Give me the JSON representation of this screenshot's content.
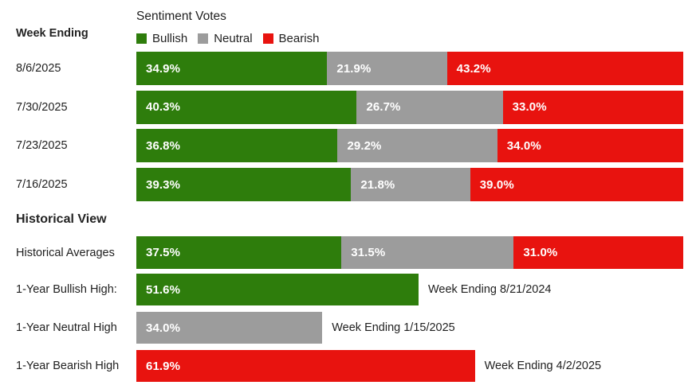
{
  "title": "Sentiment Votes",
  "left_header": "Week Ending",
  "section_header": "Historical View",
  "colors": {
    "bullish": "#2e7d0c",
    "neutral": "#9c9c9c",
    "bearish": "#e8130f",
    "text": "#1f1f1f",
    "bar_label": "#ffffff",
    "background": "#ffffff"
  },
  "chart_data": {
    "type": "bar",
    "subtype": "horizontal-stacked",
    "title": "Sentiment Votes",
    "legend_position": "top",
    "legend": [
      "Bullish",
      "Neutral",
      "Bearish"
    ],
    "xlim": [
      0,
      100
    ],
    "value_format": "one-decimal-percent",
    "categories": [
      "8/6/2025",
      "7/30/2025",
      "7/23/2025",
      "7/16/2025"
    ],
    "series": [
      {
        "name": "Bullish",
        "key": "bullish",
        "color": "#2e7d0c",
        "values": [
          34.9,
          40.3,
          36.8,
          39.3
        ]
      },
      {
        "name": "Neutral",
        "key": "neutral",
        "color": "#9c9c9c",
        "values": [
          21.9,
          26.7,
          29.2,
          21.8
        ]
      },
      {
        "name": "Bearish",
        "key": "bearish",
        "color": "#e8130f",
        "values": [
          43.2,
          33.0,
          34.0,
          39.0
        ]
      }
    ],
    "historical": {
      "header": "Historical View",
      "averages": {
        "label": "Historical Averages",
        "bullish": 37.5,
        "neutral": 31.5,
        "bearish": 31.0
      },
      "extremes": [
        {
          "label": "1-Year Bullish High:",
          "series_key": "bullish",
          "value": 51.6,
          "annotation": "Week Ending 8/21/2024"
        },
        {
          "label": "1-Year Neutral High",
          "series_key": "neutral",
          "value": 34.0,
          "annotation": "Week Ending 1/15/2025"
        },
        {
          "label": "1-Year Bearish High",
          "series_key": "bearish",
          "value": 61.9,
          "annotation": "Week Ending 4/2/2025"
        }
      ]
    }
  }
}
